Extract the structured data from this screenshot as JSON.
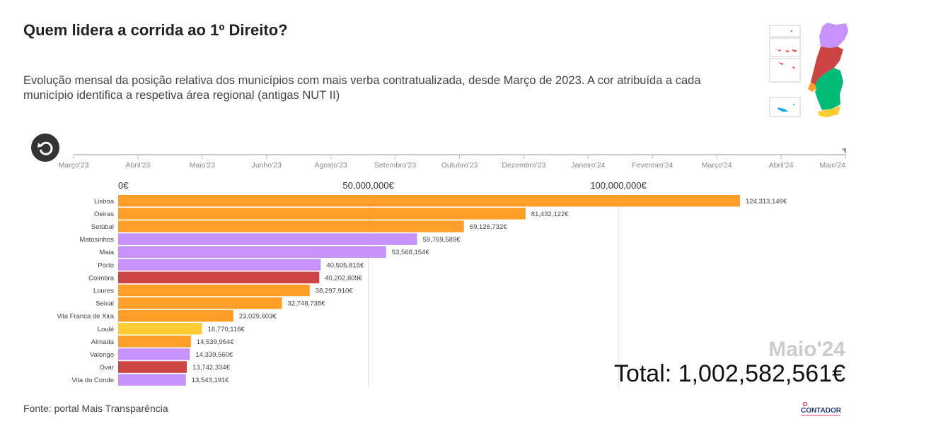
{
  "header": {
    "title": "Quem lidera a corrida ao 1º Direito?",
    "subtitle": "Evolução mensal da posição relativa dos municípios com mais verba contratualizada, desde Março de 2023. A cor atribuída a cada município identifica a respetiva área regional (antigas NUT II)"
  },
  "timeline": {
    "labels": [
      "Março'23",
      "Abril'23",
      "Maio'23",
      "Junho'23",
      "Agosto'23",
      "Setembro'23",
      "Outubro'23",
      "Dezembro'23",
      "Janeiro'24",
      "Fevereiro'24",
      "Março'24",
      "Abril'24",
      "Maio'24"
    ],
    "current": "Maio'24"
  },
  "legend_map": {
    "colors": {
      "norte": "#c792fb",
      "centro": "#cc4444",
      "lisboa": "#ff9f2a",
      "alentejo": "#00bb77",
      "algarve": "#ffcc33",
      "acores": "#ee5555",
      "madeira": "#22aaee"
    }
  },
  "chart_data": {
    "type": "bar",
    "orientation": "horizontal",
    "xlim": [
      0,
      124313146
    ],
    "ticks": [
      {
        "value": 0,
        "label": "0€"
      },
      {
        "value": 50000000,
        "label": "50,000,000€"
      },
      {
        "value": 100000000,
        "label": "100,000,000€"
      }
    ],
    "bars": [
      {
        "name": "Lisboa",
        "value": 124313146,
        "label": "124,313,146€",
        "color": "#ff9f2a"
      },
      {
        "name": "Oeiras",
        "value": 81432122,
        "label": "81,432,122€",
        "color": "#ff9f2a"
      },
      {
        "name": "Setúbal",
        "value": 69126732,
        "label": "69,126,732€",
        "color": "#ff9f2a"
      },
      {
        "name": "Matosinhos",
        "value": 59769589,
        "label": "59,769,589€",
        "color": "#c792fb"
      },
      {
        "name": "Maia",
        "value": 53568154,
        "label": "53,568,154€",
        "color": "#c792fb"
      },
      {
        "name": "Porto",
        "value": 40505815,
        "label": "40,505,815€",
        "color": "#c792fb"
      },
      {
        "name": "Coimbra",
        "value": 40202809,
        "label": "40,202,809€",
        "color": "#cc4444"
      },
      {
        "name": "Loures",
        "value": 38297910,
        "label": "38,297,910€",
        "color": "#ff9f2a"
      },
      {
        "name": "Seixal",
        "value": 32748738,
        "label": "32,748,738€",
        "color": "#ff9f2a"
      },
      {
        "name": "Vila Franca de Xira",
        "value": 23029603,
        "label": "23,029,603€",
        "color": "#ff9f2a"
      },
      {
        "name": "Loulé",
        "value": 16770116,
        "label": "16,770,116€",
        "color": "#ffcc33"
      },
      {
        "name": "Almada",
        "value": 14539954,
        "label": "14,539,954€",
        "color": "#ff9f2a"
      },
      {
        "name": "Valongo",
        "value": 14339560,
        "label": "14,339,560€",
        "color": "#c792fb"
      },
      {
        "name": "Ovar",
        "value": 13742334,
        "label": "13,742,334€",
        "color": "#cc4444"
      },
      {
        "name": "Vila do Conde",
        "value": 13543191,
        "label": "13,543,191€",
        "color": "#c792fb"
      }
    ]
  },
  "overlay": {
    "period": "Maio'24",
    "total": "Total: 1,002,582,561€"
  },
  "footer": {
    "source": "Fonte: portal Mais Transparência",
    "logo_text": "CONTADOR"
  }
}
